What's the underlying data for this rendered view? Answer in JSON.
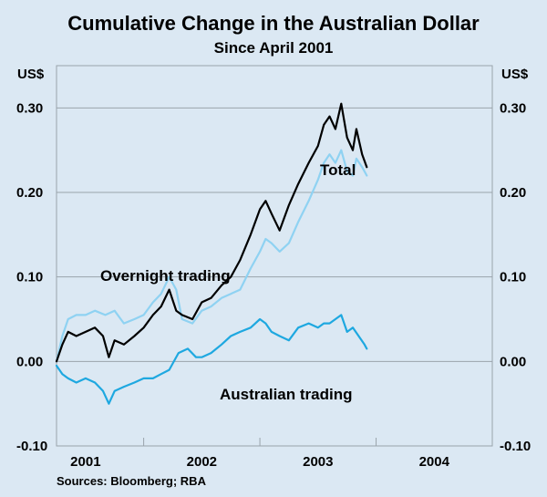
{
  "chart_data": {
    "type": "line",
    "title": "Cumulative Change in the Australian Dollar",
    "subtitle": "Since April 2001",
    "ylabel_left": "US$",
    "ylabel_right": "US$",
    "ylim": [
      -0.1,
      0.35
    ],
    "yticks": [
      -0.1,
      0.0,
      0.1,
      0.2,
      0.3
    ],
    "ytick_labels": [
      "-0.10",
      "0.00",
      "0.10",
      "0.20",
      "0.30"
    ],
    "xlim": [
      2001.25,
      2005.0
    ],
    "xtick_labels": [
      "2001",
      "2002",
      "2003",
      "2004"
    ],
    "xtick_label_positions": [
      2001.5,
      2002.5,
      2003.5,
      2004.5
    ],
    "year_boundaries": [
      2002.0,
      2003.0,
      2004.0
    ],
    "source": "Sources: Bloomberg; RBA",
    "series": [
      {
        "name": "Total",
        "color": "#000000",
        "points": [
          [
            2001.25,
            0.0
          ],
          [
            2001.3,
            0.02
          ],
          [
            2001.35,
            0.035
          ],
          [
            2001.42,
            0.03
          ],
          [
            2001.5,
            0.035
          ],
          [
            2001.58,
            0.04
          ],
          [
            2001.65,
            0.03
          ],
          [
            2001.7,
            0.005
          ],
          [
            2001.75,
            0.025
          ],
          [
            2001.83,
            0.02
          ],
          [
            2001.92,
            0.03
          ],
          [
            2002.0,
            0.04
          ],
          [
            2002.08,
            0.055
          ],
          [
            2002.15,
            0.065
          ],
          [
            2002.22,
            0.085
          ],
          [
            2002.28,
            0.06
          ],
          [
            2002.33,
            0.055
          ],
          [
            2002.42,
            0.05
          ],
          [
            2002.5,
            0.07
          ],
          [
            2002.58,
            0.075
          ],
          [
            2002.67,
            0.09
          ],
          [
            2002.75,
            0.1
          ],
          [
            2002.83,
            0.12
          ],
          [
            2002.92,
            0.15
          ],
          [
            2003.0,
            0.18
          ],
          [
            2003.05,
            0.19
          ],
          [
            2003.1,
            0.175
          ],
          [
            2003.17,
            0.155
          ],
          [
            2003.25,
            0.185
          ],
          [
            2003.33,
            0.21
          ],
          [
            2003.42,
            0.235
          ],
          [
            2003.5,
            0.255
          ],
          [
            2003.55,
            0.28
          ],
          [
            2003.6,
            0.29
          ],
          [
            2003.65,
            0.275
          ],
          [
            2003.7,
            0.305
          ],
          [
            2003.75,
            0.265
          ],
          [
            2003.8,
            0.25
          ],
          [
            2003.83,
            0.275
          ],
          [
            2003.88,
            0.245
          ],
          [
            2003.92,
            0.23
          ]
        ]
      },
      {
        "name": "Overnight trading",
        "color": "#8fd2f2",
        "points": [
          [
            2001.25,
            0.0
          ],
          [
            2001.3,
            0.03
          ],
          [
            2001.35,
            0.05
          ],
          [
            2001.42,
            0.055
          ],
          [
            2001.5,
            0.055
          ],
          [
            2001.58,
            0.06
          ],
          [
            2001.67,
            0.055
          ],
          [
            2001.75,
            0.06
          ],
          [
            2001.83,
            0.045
          ],
          [
            2001.92,
            0.05
          ],
          [
            2002.0,
            0.055
          ],
          [
            2002.08,
            0.07
          ],
          [
            2002.15,
            0.08
          ],
          [
            2002.22,
            0.1
          ],
          [
            2002.28,
            0.085
          ],
          [
            2002.33,
            0.05
          ],
          [
            2002.42,
            0.045
          ],
          [
            2002.5,
            0.06
          ],
          [
            2002.58,
            0.065
          ],
          [
            2002.67,
            0.075
          ],
          [
            2002.75,
            0.08
          ],
          [
            2002.83,
            0.085
          ],
          [
            2002.92,
            0.11
          ],
          [
            2003.0,
            0.13
          ],
          [
            2003.05,
            0.145
          ],
          [
            2003.1,
            0.14
          ],
          [
            2003.17,
            0.13
          ],
          [
            2003.25,
            0.14
          ],
          [
            2003.33,
            0.165
          ],
          [
            2003.42,
            0.19
          ],
          [
            2003.5,
            0.215
          ],
          [
            2003.55,
            0.235
          ],
          [
            2003.6,
            0.245
          ],
          [
            2003.65,
            0.235
          ],
          [
            2003.7,
            0.25
          ],
          [
            2003.75,
            0.225
          ],
          [
            2003.8,
            0.22
          ],
          [
            2003.83,
            0.24
          ],
          [
            2003.88,
            0.23
          ],
          [
            2003.92,
            0.22
          ]
        ]
      },
      {
        "name": "Australian trading",
        "color": "#1ea8e0",
        "points": [
          [
            2001.25,
            -0.005
          ],
          [
            2001.3,
            -0.015
          ],
          [
            2001.35,
            -0.02
          ],
          [
            2001.42,
            -0.025
          ],
          [
            2001.5,
            -0.02
          ],
          [
            2001.58,
            -0.025
          ],
          [
            2001.65,
            -0.035
          ],
          [
            2001.7,
            -0.05
          ],
          [
            2001.75,
            -0.035
          ],
          [
            2001.83,
            -0.03
          ],
          [
            2001.92,
            -0.025
          ],
          [
            2002.0,
            -0.02
          ],
          [
            2002.08,
            -0.02
          ],
          [
            2002.15,
            -0.015
          ],
          [
            2002.22,
            -0.01
          ],
          [
            2002.3,
            0.01
          ],
          [
            2002.38,
            0.015
          ],
          [
            2002.45,
            0.005
          ],
          [
            2002.5,
            0.005
          ],
          [
            2002.58,
            0.01
          ],
          [
            2002.67,
            0.02
          ],
          [
            2002.75,
            0.03
          ],
          [
            2002.83,
            0.035
          ],
          [
            2002.92,
            0.04
          ],
          [
            2003.0,
            0.05
          ],
          [
            2003.05,
            0.045
          ],
          [
            2003.1,
            0.035
          ],
          [
            2003.17,
            0.03
          ],
          [
            2003.25,
            0.025
          ],
          [
            2003.33,
            0.04
          ],
          [
            2003.42,
            0.045
          ],
          [
            2003.5,
            0.04
          ],
          [
            2003.55,
            0.045
          ],
          [
            2003.6,
            0.045
          ],
          [
            2003.65,
            0.05
          ],
          [
            2003.7,
            0.055
          ],
          [
            2003.75,
            0.035
          ],
          [
            2003.8,
            0.04
          ],
          [
            2003.85,
            0.03
          ],
          [
            2003.9,
            0.02
          ],
          [
            2003.92,
            0.015
          ]
        ]
      }
    ],
    "annotations": [
      {
        "text": "Total",
        "series": "Total"
      },
      {
        "text": "Overnight trading",
        "series": "Overnight trading"
      },
      {
        "text": "Australian trading",
        "series": "Australian trading"
      }
    ]
  }
}
